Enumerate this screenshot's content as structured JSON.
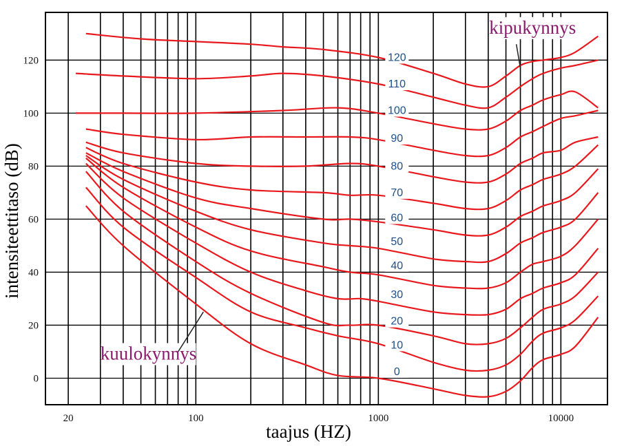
{
  "chart_data": {
    "type": "line",
    "xscale": "log",
    "xlim": [
      15,
      18000
    ],
    "ylim": [
      -10,
      138
    ],
    "grid": true,
    "xlabel": "taajus (HZ)",
    "ylabel": "intensiteettitaso (dB)",
    "xtick_values": [
      20,
      100,
      1000,
      10000
    ],
    "xtick_labels": [
      "20",
      "100",
      "1000",
      "10000"
    ],
    "x_gridlines": [
      20,
      30,
      40,
      50,
      60,
      70,
      80,
      90,
      100,
      200,
      300,
      400,
      500,
      600,
      700,
      800,
      900,
      1000,
      2000,
      3000,
      4000,
      5000,
      6000,
      7000,
      8000,
      9000,
      10000
    ],
    "ytick_values": [
      0,
      20,
      40,
      60,
      80,
      100,
      120
    ],
    "ytick_labels": [
      "0",
      "20",
      "40",
      "60",
      "80",
      "100",
      "120"
    ],
    "line_color": "#e8181c",
    "label_color": "#1a4f8f",
    "annotation_color": "#8a1a6e",
    "series": [
      {
        "name": "0",
        "label_at": [
          1100,
          2.5
        ],
        "points": [
          [
            25,
            65
          ],
          [
            40,
            50
          ],
          [
            100,
            28
          ],
          [
            200,
            13
          ],
          [
            400,
            5
          ],
          [
            600,
            1
          ],
          [
            1000,
            0
          ],
          [
            2000,
            -4
          ],
          [
            3000,
            -6.5
          ],
          [
            4000,
            -7
          ],
          [
            5000,
            -5
          ],
          [
            6000,
            -1
          ],
          [
            7000,
            4
          ],
          [
            8000,
            7
          ],
          [
            10000,
            9
          ],
          [
            12000,
            12
          ],
          [
            16000,
            23
          ]
        ]
      },
      {
        "name": "10",
        "label_at": [
          1100,
          12.5
        ],
        "points": [
          [
            25,
            72
          ],
          [
            40,
            57
          ],
          [
            100,
            38
          ],
          [
            200,
            25
          ],
          [
            400,
            19
          ],
          [
            600,
            16
          ],
          [
            1000,
            13
          ],
          [
            2000,
            6
          ],
          [
            3000,
            3
          ],
          [
            4000,
            3
          ],
          [
            5000,
            5
          ],
          [
            6000,
            9
          ],
          [
            7000,
            14
          ],
          [
            8000,
            17
          ],
          [
            10000,
            19
          ],
          [
            12000,
            22
          ],
          [
            16000,
            31
          ]
        ]
      },
      {
        "name": "20",
        "label_at": [
          1100,
          21.5
        ],
        "points": [
          [
            25,
            78
          ],
          [
            40,
            63
          ],
          [
            100,
            44
          ],
          [
            200,
            32
          ],
          [
            500,
            21
          ],
          [
            700,
            20
          ],
          [
            1000,
            20
          ],
          [
            2000,
            16
          ],
          [
            3000,
            13
          ],
          [
            4000,
            13
          ],
          [
            5000,
            15
          ],
          [
            6000,
            19
          ],
          [
            7000,
            23
          ],
          [
            8000,
            26
          ],
          [
            10000,
            28
          ],
          [
            12000,
            31
          ],
          [
            16000,
            40
          ]
        ]
      },
      {
        "name": "30",
        "label_at": [
          1100,
          31.5
        ],
        "points": [
          [
            25,
            81
          ],
          [
            40,
            68
          ],
          [
            100,
            51
          ],
          [
            200,
            40
          ],
          [
            400,
            33
          ],
          [
            600,
            30
          ],
          [
            800,
            30
          ],
          [
            1000,
            29
          ],
          [
            2000,
            25
          ],
          [
            3000,
            24
          ],
          [
            4000,
            24
          ],
          [
            5000,
            26
          ],
          [
            6000,
            30
          ],
          [
            7000,
            32
          ],
          [
            8000,
            34
          ],
          [
            10000,
            36
          ],
          [
            12000,
            39
          ],
          [
            16000,
            49
          ]
        ]
      },
      {
        "name": "40",
        "label_at": [
          1100,
          42.5
        ],
        "points": [
          [
            25,
            83
          ],
          [
            40,
            72
          ],
          [
            100,
            57
          ],
          [
            200,
            48
          ],
          [
            500,
            42
          ],
          [
            700,
            40
          ],
          [
            1000,
            39
          ],
          [
            2000,
            35
          ],
          [
            3000,
            34
          ],
          [
            4000,
            34
          ],
          [
            5000,
            36
          ],
          [
            6000,
            40
          ],
          [
            7000,
            43
          ],
          [
            8000,
            44
          ],
          [
            10000,
            46
          ],
          [
            12000,
            50
          ],
          [
            16000,
            60
          ]
        ]
      },
      {
        "name": "50",
        "label_at": [
          1100,
          51.5
        ],
        "points": [
          [
            25,
            84
          ],
          [
            40,
            75
          ],
          [
            100,
            63
          ],
          [
            200,
            56
          ],
          [
            500,
            51
          ],
          [
            700,
            50
          ],
          [
            1000,
            49
          ],
          [
            2000,
            45
          ],
          [
            3000,
            44
          ],
          [
            4000,
            44
          ],
          [
            5000,
            47
          ],
          [
            6000,
            51
          ],
          [
            7000,
            53
          ],
          [
            8000,
            55
          ],
          [
            10000,
            57
          ],
          [
            12000,
            60
          ],
          [
            16000,
            70
          ]
        ]
      },
      {
        "name": "60",
        "label_at": [
          1100,
          60.5
        ],
        "points": [
          [
            25,
            85
          ],
          [
            40,
            78
          ],
          [
            100,
            68
          ],
          [
            200,
            64
          ],
          [
            500,
            60
          ],
          [
            700,
            60
          ],
          [
            1000,
            59
          ],
          [
            2000,
            56
          ],
          [
            3000,
            54
          ],
          [
            4000,
            54
          ],
          [
            5000,
            57
          ],
          [
            6000,
            61
          ],
          [
            7000,
            63
          ],
          [
            8000,
            65
          ],
          [
            10000,
            67
          ],
          [
            12000,
            70
          ],
          [
            16000,
            79
          ]
        ]
      },
      {
        "name": "70",
        "label_at": [
          1100,
          70
        ],
        "points": [
          [
            25,
            87
          ],
          [
            40,
            81
          ],
          [
            100,
            74
          ],
          [
            200,
            71
          ],
          [
            500,
            70
          ],
          [
            700,
            69
          ],
          [
            1000,
            69
          ],
          [
            2000,
            66
          ],
          [
            3000,
            64
          ],
          [
            4000,
            64
          ],
          [
            5000,
            67
          ],
          [
            6000,
            71
          ],
          [
            7000,
            73
          ],
          [
            8000,
            75
          ],
          [
            10000,
            77
          ],
          [
            12000,
            80
          ],
          [
            16000,
            88
          ]
        ]
      },
      {
        "name": "80",
        "label_at": [
          1100,
          80
        ],
        "points": [
          [
            25,
            89
          ],
          [
            40,
            85
          ],
          [
            100,
            81
          ],
          [
            200,
            80
          ],
          [
            400,
            80
          ],
          [
            700,
            81
          ],
          [
            1000,
            80
          ],
          [
            2000,
            76
          ],
          [
            3000,
            74
          ],
          [
            4000,
            74
          ],
          [
            5000,
            77
          ],
          [
            6000,
            81
          ],
          [
            7000,
            83
          ],
          [
            8000,
            85
          ],
          [
            10000,
            86
          ],
          [
            12000,
            89
          ],
          [
            16000,
            91
          ]
        ]
      },
      {
        "name": "90",
        "label_at": [
          1100,
          90.5
        ],
        "points": [
          [
            25,
            94
          ],
          [
            40,
            92
          ],
          [
            100,
            90
          ],
          [
            200,
            91
          ],
          [
            400,
            91
          ],
          [
            700,
            91
          ],
          [
            1000,
            90
          ],
          [
            2000,
            86
          ],
          [
            3000,
            84
          ],
          [
            4000,
            84
          ],
          [
            5000,
            87
          ],
          [
            6000,
            91
          ],
          [
            7000,
            93
          ],
          [
            8000,
            95
          ],
          [
            10000,
            98
          ],
          [
            12000,
            99
          ],
          [
            16000,
            101
          ]
        ]
      },
      {
        "name": "100",
        "label_at": [
          1100,
          101
        ],
        "points": [
          [
            22,
            100
          ],
          [
            40,
            100
          ],
          [
            100,
            100
          ],
          [
            300,
            101
          ],
          [
            600,
            102
          ],
          [
            1000,
            100
          ],
          [
            2000,
            96
          ],
          [
            3000,
            94
          ],
          [
            4000,
            94
          ],
          [
            5000,
            97
          ],
          [
            6000,
            101
          ],
          [
            7000,
            103
          ],
          [
            8000,
            105
          ],
          [
            10000,
            107
          ],
          [
            12000,
            108
          ],
          [
            16000,
            102
          ]
        ]
      },
      {
        "name": "110",
        "label_at": [
          1100,
          111
        ],
        "points": [
          [
            22,
            115
          ],
          [
            40,
            114
          ],
          [
            100,
            113
          ],
          [
            200,
            114
          ],
          [
            300,
            115
          ],
          [
            500,
            114
          ],
          [
            1000,
            111
          ],
          [
            2000,
            106
          ],
          [
            3000,
            103
          ],
          [
            4000,
            102
          ],
          [
            5000,
            106
          ],
          [
            6000,
            110
          ],
          [
            7000,
            113
          ],
          [
            8000,
            115
          ],
          [
            10000,
            117
          ],
          [
            12000,
            118
          ],
          [
            16000,
            120
          ]
        ]
      },
      {
        "name": "120",
        "label_at": [
          1100,
          121
        ],
        "points": [
          [
            25,
            130
          ],
          [
            50,
            128
          ],
          [
            100,
            127
          ],
          [
            200,
            126
          ],
          [
            300,
            125
          ],
          [
            500,
            124
          ],
          [
            1000,
            121
          ],
          [
            2000,
            115
          ],
          [
            3000,
            111
          ],
          [
            4000,
            110
          ],
          [
            5000,
            114
          ],
          [
            6000,
            118
          ],
          [
            7000,
            119.5
          ],
          [
            8000,
            120
          ],
          [
            10000,
            121
          ],
          [
            12000,
            123
          ],
          [
            16000,
            129
          ]
        ]
      }
    ],
    "annotations": [
      {
        "text": "kipukynnys",
        "text_at": [
          7000,
          130
        ],
        "pointer_from": [
          5700,
          126
        ],
        "pointer_to": [
          6000,
          117
        ]
      },
      {
        "text": "kuulokynnys",
        "text_at": [
          55,
          7
        ],
        "pointer_from": [
          80,
          10
        ],
        "pointer_to": [
          110,
          25
        ]
      }
    ]
  }
}
